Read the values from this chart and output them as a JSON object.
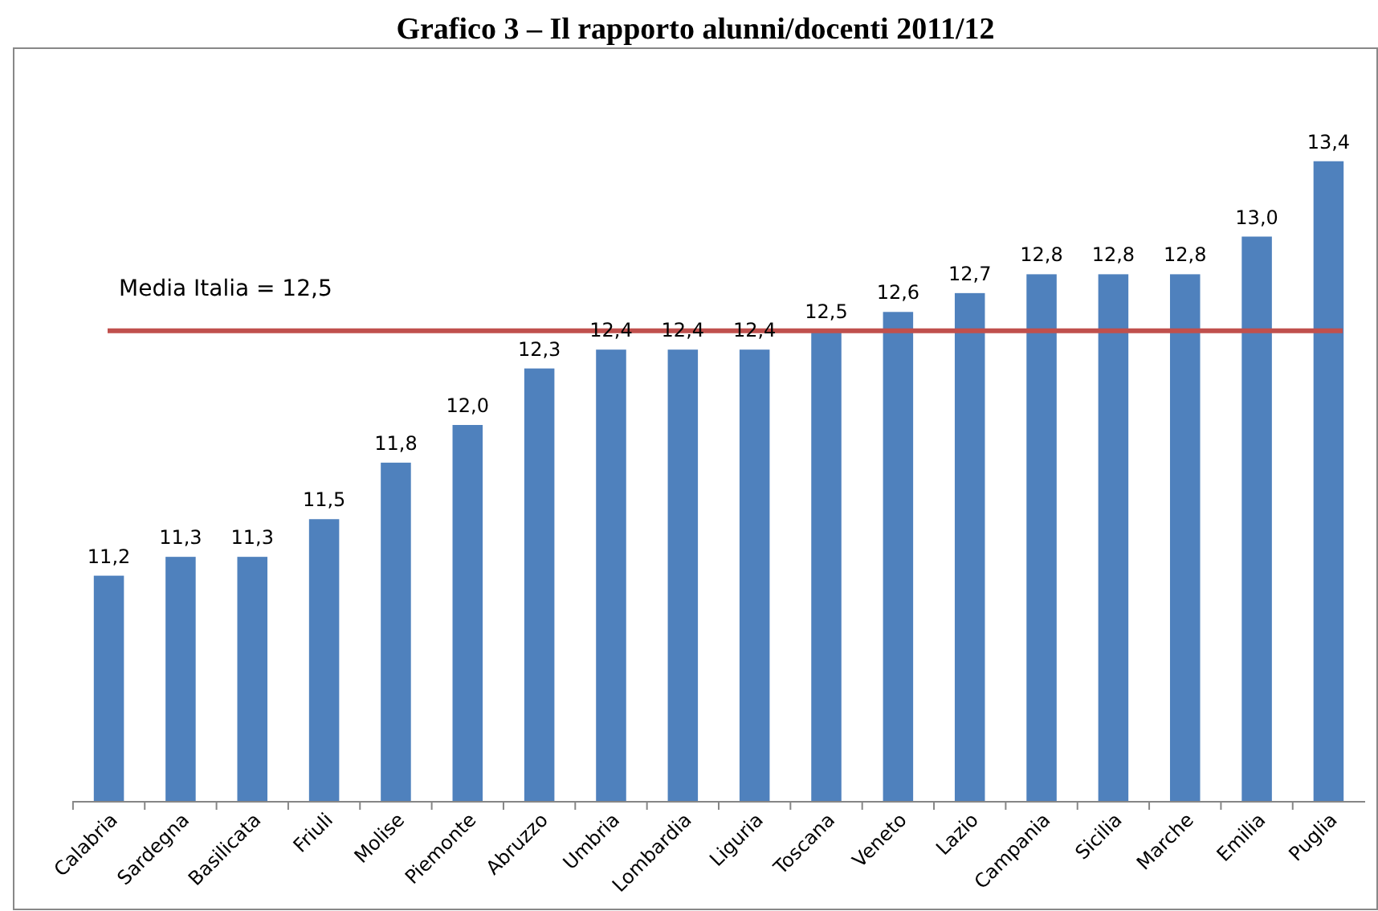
{
  "chart_data": {
    "type": "bar",
    "title": "Grafico 3 – Il rapporto alunni/docenti 2011/12",
    "categories": [
      "Calabria",
      "Sardegna",
      "Basilicata",
      "Friuli",
      "Molise",
      "Piemonte",
      "Abruzzo",
      "Umbria",
      "Lombardia",
      "Liguria",
      "Toscana",
      "Veneto",
      "Lazio",
      "Campania",
      "Sicilia",
      "Marche",
      "Emilia",
      "Puglia"
    ],
    "values": [
      11.2,
      11.3,
      11.3,
      11.5,
      11.8,
      12.0,
      12.3,
      12.4,
      12.4,
      12.4,
      12.5,
      12.6,
      12.7,
      12.8,
      12.8,
      12.8,
      13.0,
      13.4
    ],
    "value_labels": [
      "11,2",
      "11,3",
      "11,3",
      "11,5",
      "11,8",
      "12,0",
      "12,3",
      "12,4",
      "12,4",
      "12,4",
      "12,5",
      "12,6",
      "12,7",
      "12,8",
      "12,8",
      "12,8",
      "13,0",
      "13,4"
    ],
    "color": "#4f81bd",
    "ylim": [
      10,
      14
    ],
    "tick_labels": "x",
    "ref_lines": [
      {
        "axis": "y",
        "value": 12.5,
        "label": "Media Italia = 12,5",
        "color": "#c0504d"
      }
    ]
  }
}
